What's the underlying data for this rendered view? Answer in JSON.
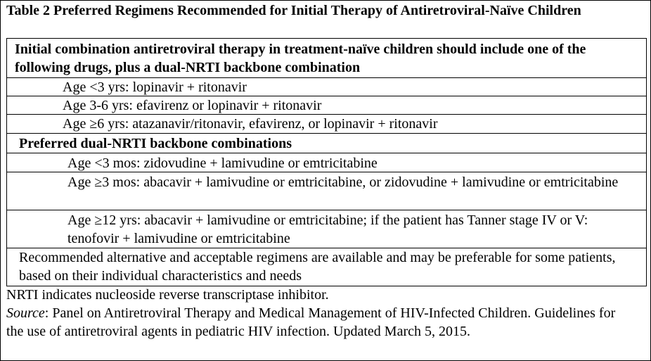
{
  "title": "Table 2 Preferred Regimens Recommended for Initial Therapy of Antiretroviral-Naïve Children",
  "table": {
    "header": "Initial combination antiretroviral therapy in treatment-naïve children should include one of the following drugs, plus a dual-NRTI backbone combination",
    "drug_rows": [
      "Age <3 yrs: lopinavir + ritonavir",
      "Age 3-6 yrs: efavirenz or lopinavir + ritonavir",
      "Age ≥6 yrs: atazanavir/ritonavir, efavirenz, or lopinavir + ritonavir"
    ],
    "backbone_header": "Preferred dual-NRTI backbone combinations",
    "backbone_rows": [
      "Age <3 mos: zidovudine + lamivudine or emtricitabine",
      "Age ≥3 mos: abacavir + lamivudine or emtricitabine, or zidovudine + lamivudine or emtricitabine",
      "Age ≥12 yrs: abacavir + lamivudine or emtricitabine; if the patient has Tanner stage IV or V: tenofovir + lamivudine or emtricitabine"
    ],
    "footer": "Recommended alternative and acceptable regimens are available and may be preferable for some patients, based on their individual characteristics and needs"
  },
  "notes": {
    "abbreviation": "NRTI indicates nucleoside reverse transcriptase inhibitor.",
    "source_label": "Source",
    "source_text": ": Panel on Antiretroviral Therapy and Medical Management of HIV-Infected Children. Guidelines for the use of antiretroviral agents in pediatric HIV infection. Updated March 5, 2015."
  }
}
